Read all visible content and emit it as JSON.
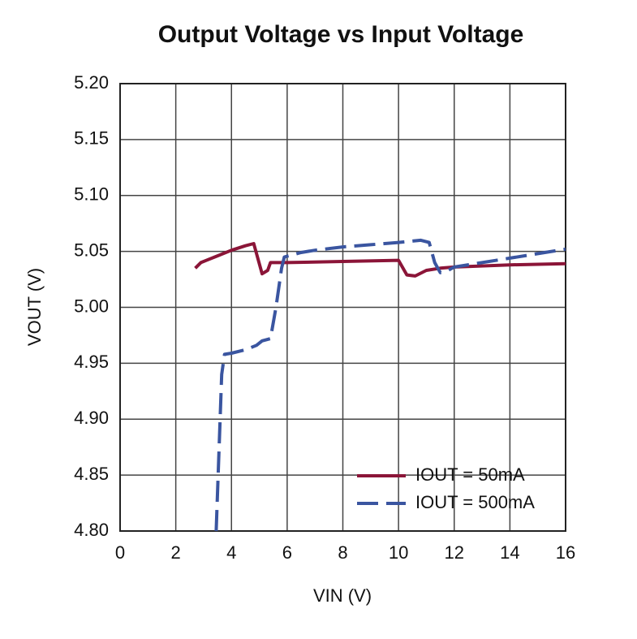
{
  "chart_data": {
    "type": "line",
    "title": "Output Voltage vs Input Voltage",
    "x_label": "VIN (V)",
    "y_label": "VOUT (V)",
    "xlim": [
      0,
      16
    ],
    "xticks": [
      0,
      2,
      4,
      6,
      8,
      10,
      12,
      14,
      16
    ],
    "ylim": [
      4.8,
      5.2
    ],
    "yticks": [
      {
        "value": 4.8,
        "label": "4.80"
      },
      {
        "value": 4.85,
        "label": "4.85"
      },
      {
        "value": 4.9,
        "label": "4.90"
      },
      {
        "value": 4.95,
        "label": "4.95"
      },
      {
        "value": 5.0,
        "label": "5.00"
      },
      {
        "value": 5.05,
        "label": "5.05"
      },
      {
        "value": 5.1,
        "label": "5.10"
      },
      {
        "value": 5.15,
        "label": "5.15"
      },
      {
        "value": 5.2,
        "label": "5.20"
      }
    ],
    "grid": true,
    "legend": "lower right",
    "series": [
      {
        "name": "IOUT = 50mA",
        "color": "#8b1538",
        "dash": false,
        "x": [
          2.7,
          2.9,
          3.5,
          4,
          4.5,
          4.8,
          5.1,
          5.3,
          5.4,
          6,
          8,
          10,
          10.3,
          10.6,
          11,
          11.5,
          12,
          14,
          16
        ],
        "values": [
          5.035,
          5.04,
          5.046,
          5.051,
          5.055,
          5.057,
          5.03,
          5.033,
          5.04,
          5.04,
          5.041,
          5.042,
          5.029,
          5.028,
          5.033,
          5.035,
          5.036,
          5.038,
          5.039
        ]
      },
      {
        "name": "IOUT = 500mA",
        "color": "#3a55a0",
        "dash": true,
        "x": [
          3.45,
          3.55,
          3.65,
          3.75,
          4,
          4.5,
          4.9,
          5.1,
          5.4,
          5.6,
          5.8,
          5.9,
          6.5,
          7,
          8,
          9,
          10,
          10.8,
          11.1,
          11.3,
          11.5,
          11.7,
          12,
          14,
          16
        ],
        "values": [
          4.8,
          4.87,
          4.94,
          4.958,
          4.959,
          4.962,
          4.966,
          4.97,
          4.972,
          5.0,
          5.035,
          5.045,
          5.049,
          5.051,
          5.054,
          5.056,
          5.058,
          5.06,
          5.058,
          5.04,
          5.031,
          5.032,
          5.036,
          5.044,
          5.052
        ]
      }
    ]
  }
}
